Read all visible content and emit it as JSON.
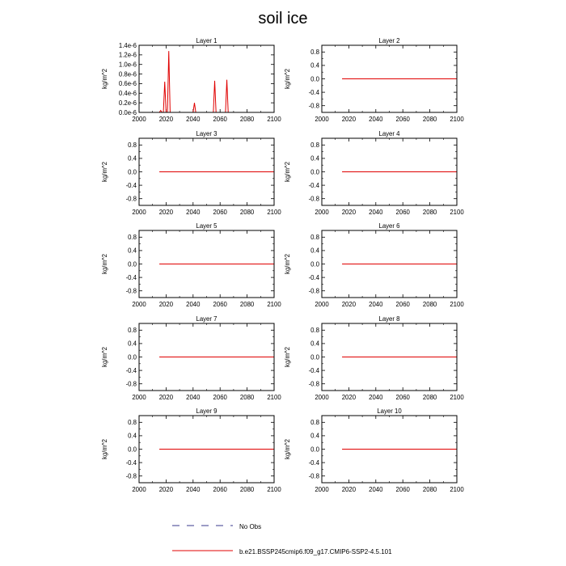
{
  "figure": {
    "title": "soil ice",
    "legend": [
      {
        "label": "No Obs",
        "style": "dashed",
        "color": "#3a3a8c"
      },
      {
        "label": "b.e21.BSSP245cmip6.f09_g17.CMIP6-SSP2-4.5.101",
        "style": "solid",
        "color": "#e00000"
      }
    ]
  },
  "chart_data": [
    {
      "type": "line",
      "title": "Layer 1",
      "ylabel": "kg/m^2",
      "xlim": [
        2000,
        2100
      ],
      "ylim": [
        0,
        1.4e-06
      ],
      "xticks": [
        "2000",
        "2020",
        "2040",
        "2060",
        "2080",
        "2100"
      ],
      "yticks": [
        {
          "v": 0,
          "label": "0.0e-6"
        },
        {
          "v": 2e-07,
          "label": "0.2e-6"
        },
        {
          "v": 4e-07,
          "label": "0.4e-6"
        },
        {
          "v": 6e-07,
          "label": "0.6e-6"
        },
        {
          "v": 8e-07,
          "label": "0.8e-6"
        },
        {
          "v": 1e-06,
          "label": "1.0e-6"
        },
        {
          "v": 1.2e-06,
          "label": "1.2e-6"
        },
        {
          "v": 1.4e-06,
          "label": "1.4e-6"
        }
      ],
      "series": [
        {
          "name": "b.e21.BSSP245cmip6.f09_g17.CMIP6-SSP2-4.5.101",
          "color": "#e00000",
          "x": [
            2015,
            2016,
            2017,
            2018,
            2019,
            2020,
            2021,
            2022,
            2023,
            2024,
            2040,
            2041,
            2042,
            2055,
            2056,
            2057,
            2064,
            2065,
            2066,
            2100
          ],
          "y": [
            0,
            4e-08,
            0,
            0,
            6.4e-07,
            0,
            0,
            1.28e-06,
            0,
            0,
            0,
            2e-07,
            0,
            0,
            6.6e-07,
            0,
            0,
            6.8e-07,
            0,
            0
          ]
        }
      ]
    },
    {
      "type": "line",
      "title": "Layer 2",
      "ylabel": "kg/m^2",
      "xlim": [
        2000,
        2100
      ],
      "ylim": [
        -1,
        1
      ],
      "xticks": [
        "2000",
        "2020",
        "2040",
        "2060",
        "2080",
        "2100"
      ],
      "yticks": [
        {
          "v": 0.8,
          "label": "0.8"
        },
        {
          "v": 0.4,
          "label": "0.4"
        },
        {
          "v": 0,
          "label": "0.0"
        },
        {
          "v": -0.4,
          "label": "-0.4"
        },
        {
          "v": -0.8,
          "label": "-0.8"
        }
      ],
      "series": [
        {
          "name": "b.e21.BSSP245cmip6.f09_g17.CMIP6-SSP2-4.5.101",
          "color": "#e00000",
          "x": [
            2015,
            2100
          ],
          "y": [
            0,
            0
          ]
        }
      ]
    },
    {
      "type": "line",
      "title": "Layer 3",
      "ylabel": "kg/m^2",
      "xlim": [
        2000,
        2100
      ],
      "ylim": [
        -1,
        1
      ],
      "xticks": [
        "2000",
        "2020",
        "2040",
        "2060",
        "2080",
        "2100"
      ],
      "yticks": [
        {
          "v": 0.8,
          "label": "0.8"
        },
        {
          "v": 0.4,
          "label": "0.4"
        },
        {
          "v": 0,
          "label": "0.0"
        },
        {
          "v": -0.4,
          "label": "-0.4"
        },
        {
          "v": -0.8,
          "label": "-0.8"
        }
      ],
      "series": [
        {
          "name": "b.e21.BSSP245cmip6.f09_g17.CMIP6-SSP2-4.5.101",
          "color": "#e00000",
          "x": [
            2015,
            2100
          ],
          "y": [
            0,
            0
          ]
        }
      ]
    },
    {
      "type": "line",
      "title": "Layer 4",
      "ylabel": "kg/m^2",
      "xlim": [
        2000,
        2100
      ],
      "ylim": [
        -1,
        1
      ],
      "xticks": [
        "2000",
        "2020",
        "2040",
        "2060",
        "2080",
        "2100"
      ],
      "yticks": [
        {
          "v": 0.8,
          "label": "0.8"
        },
        {
          "v": 0.4,
          "label": "0.4"
        },
        {
          "v": 0,
          "label": "0.0"
        },
        {
          "v": -0.4,
          "label": "-0.4"
        },
        {
          "v": -0.8,
          "label": "-0.8"
        }
      ],
      "series": [
        {
          "name": "b.e21.BSSP245cmip6.f09_g17.CMIP6-SSP2-4.5.101",
          "color": "#e00000",
          "x": [
            2015,
            2100
          ],
          "y": [
            0,
            0
          ]
        }
      ]
    },
    {
      "type": "line",
      "title": "Layer 5",
      "ylabel": "kg/m^2",
      "xlim": [
        2000,
        2100
      ],
      "ylim": [
        -1,
        1
      ],
      "xticks": [
        "2000",
        "2020",
        "2040",
        "2060",
        "2080",
        "2100"
      ],
      "yticks": [
        {
          "v": 0.8,
          "label": "0.8"
        },
        {
          "v": 0.4,
          "label": "0.4"
        },
        {
          "v": 0,
          "label": "0.0"
        },
        {
          "v": -0.4,
          "label": "-0.4"
        },
        {
          "v": -0.8,
          "label": "-0.8"
        }
      ],
      "series": [
        {
          "name": "b.e21.BSSP245cmip6.f09_g17.CMIP6-SSP2-4.5.101",
          "color": "#e00000",
          "x": [
            2015,
            2100
          ],
          "y": [
            0,
            0
          ]
        }
      ]
    },
    {
      "type": "line",
      "title": "Layer 6",
      "ylabel": "kg/m^2",
      "xlim": [
        2000,
        2100
      ],
      "ylim": [
        -1,
        1
      ],
      "xticks": [
        "2000",
        "2020",
        "2040",
        "2060",
        "2080",
        "2100"
      ],
      "yticks": [
        {
          "v": 0.8,
          "label": "0.8"
        },
        {
          "v": 0.4,
          "label": "0.4"
        },
        {
          "v": 0,
          "label": "0.0"
        },
        {
          "v": -0.4,
          "label": "-0.4"
        },
        {
          "v": -0.8,
          "label": "-0.8"
        }
      ],
      "series": [
        {
          "name": "b.e21.BSSP245cmip6.f09_g17.CMIP6-SSP2-4.5.101",
          "color": "#e00000",
          "x": [
            2015,
            2100
          ],
          "y": [
            0,
            0
          ]
        }
      ]
    },
    {
      "type": "line",
      "title": "Layer 7",
      "ylabel": "kg/m^2",
      "xlim": [
        2000,
        2100
      ],
      "ylim": [
        -1,
        1
      ],
      "xticks": [
        "2000",
        "2020",
        "2040",
        "2060",
        "2080",
        "2100"
      ],
      "yticks": [
        {
          "v": 0.8,
          "label": "0.8"
        },
        {
          "v": 0.4,
          "label": "0.4"
        },
        {
          "v": 0,
          "label": "0.0"
        },
        {
          "v": -0.4,
          "label": "-0.4"
        },
        {
          "v": -0.8,
          "label": "-0.8"
        }
      ],
      "series": [
        {
          "name": "b.e21.BSSP245cmip6.f09_g17.CMIP6-SSP2-4.5.101",
          "color": "#e00000",
          "x": [
            2015,
            2100
          ],
          "y": [
            0,
            0
          ]
        }
      ]
    },
    {
      "type": "line",
      "title": "Layer 8",
      "ylabel": "kg/m^2",
      "xlim": [
        2000,
        2100
      ],
      "ylim": [
        -1,
        1
      ],
      "xticks": [
        "2000",
        "2020",
        "2040",
        "2060",
        "2080",
        "2100"
      ],
      "yticks": [
        {
          "v": 0.8,
          "label": "0.8"
        },
        {
          "v": 0.4,
          "label": "0.4"
        },
        {
          "v": 0,
          "label": "0.0"
        },
        {
          "v": -0.4,
          "label": "-0.4"
        },
        {
          "v": -0.8,
          "label": "-0.8"
        }
      ],
      "series": [
        {
          "name": "b.e21.BSSP245cmip6.f09_g17.CMIP6-SSP2-4.5.101",
          "color": "#e00000",
          "x": [
            2015,
            2100
          ],
          "y": [
            0,
            0
          ]
        }
      ]
    },
    {
      "type": "line",
      "title": "Layer 9",
      "ylabel": "kg/m^2",
      "xlim": [
        2000,
        2100
      ],
      "ylim": [
        -1,
        1
      ],
      "xticks": [
        "2000",
        "2020",
        "2040",
        "2060",
        "2080",
        "2100"
      ],
      "yticks": [
        {
          "v": 0.8,
          "label": "0.8"
        },
        {
          "v": 0.4,
          "label": "0.4"
        },
        {
          "v": 0,
          "label": "0.0"
        },
        {
          "v": -0.4,
          "label": "-0.4"
        },
        {
          "v": -0.8,
          "label": "-0.8"
        }
      ],
      "series": [
        {
          "name": "b.e21.BSSP245cmip6.f09_g17.CMIP6-SSP2-4.5.101",
          "color": "#e00000",
          "x": [
            2015,
            2100
          ],
          "y": [
            0,
            0
          ]
        }
      ]
    },
    {
      "type": "line",
      "title": "Layer 10",
      "ylabel": "kg/m^2",
      "xlim": [
        2000,
        2100
      ],
      "ylim": [
        -1,
        1
      ],
      "xticks": [
        "2000",
        "2020",
        "2040",
        "2060",
        "2080",
        "2100"
      ],
      "yticks": [
        {
          "v": 0.8,
          "label": "0.8"
        },
        {
          "v": 0.4,
          "label": "0.4"
        },
        {
          "v": 0,
          "label": "0.0"
        },
        {
          "v": -0.4,
          "label": "-0.4"
        },
        {
          "v": -0.8,
          "label": "-0.8"
        }
      ],
      "series": [
        {
          "name": "b.e21.BSSP245cmip6.f09_g17.CMIP6-SSP2-4.5.101",
          "color": "#e00000",
          "x": [
            2015,
            2100
          ],
          "y": [
            0,
            0
          ]
        }
      ]
    }
  ]
}
